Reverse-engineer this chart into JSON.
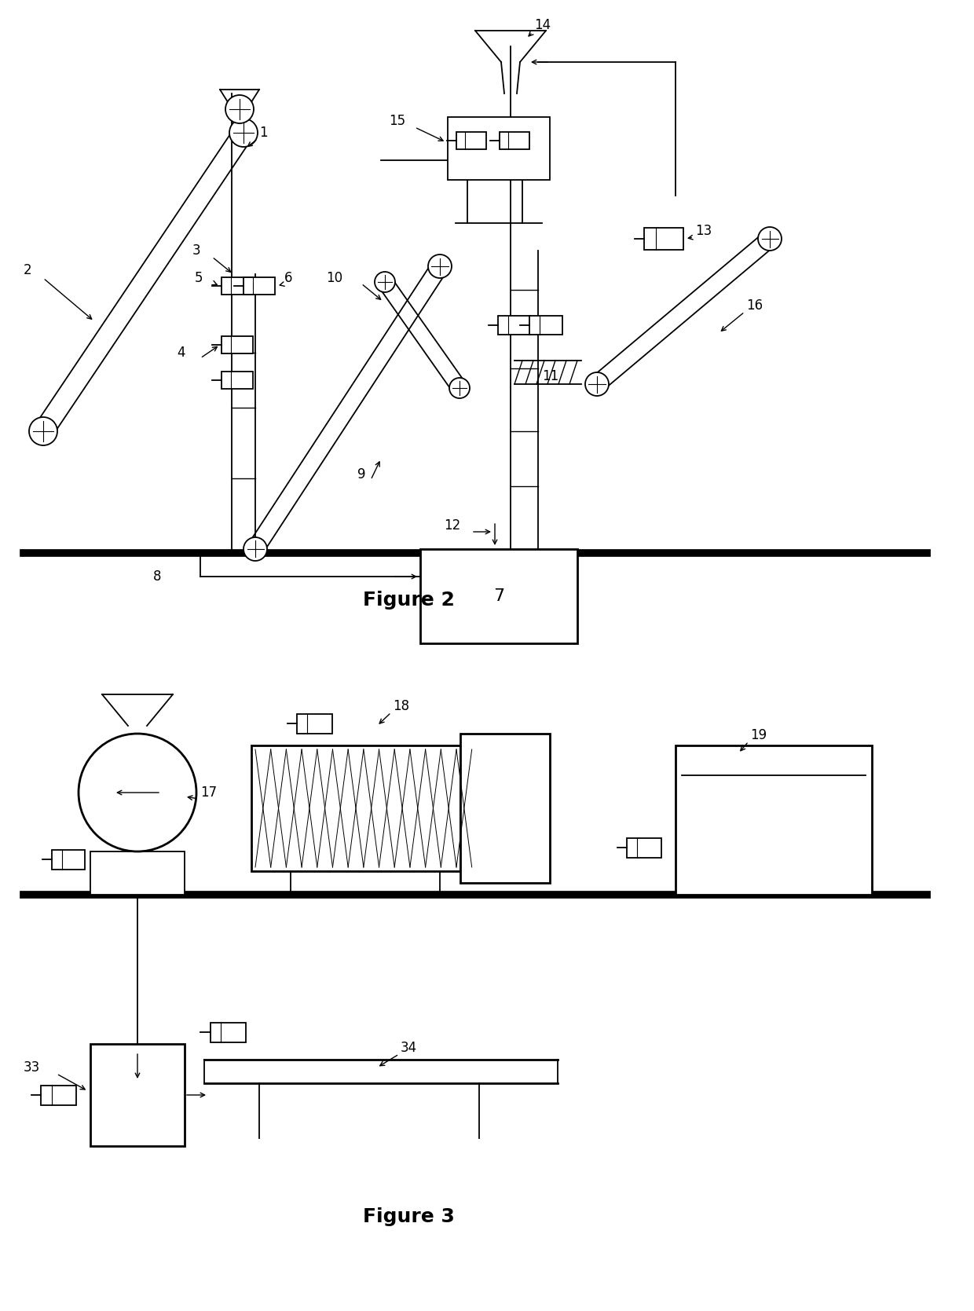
{
  "fig_width": 12.4,
  "fig_height": 16.69,
  "dpi": 100,
  "bg_color": "#ffffff",
  "black": "#000000",
  "figure2_label": "Figure 2",
  "figure3_label": "Figure 3"
}
